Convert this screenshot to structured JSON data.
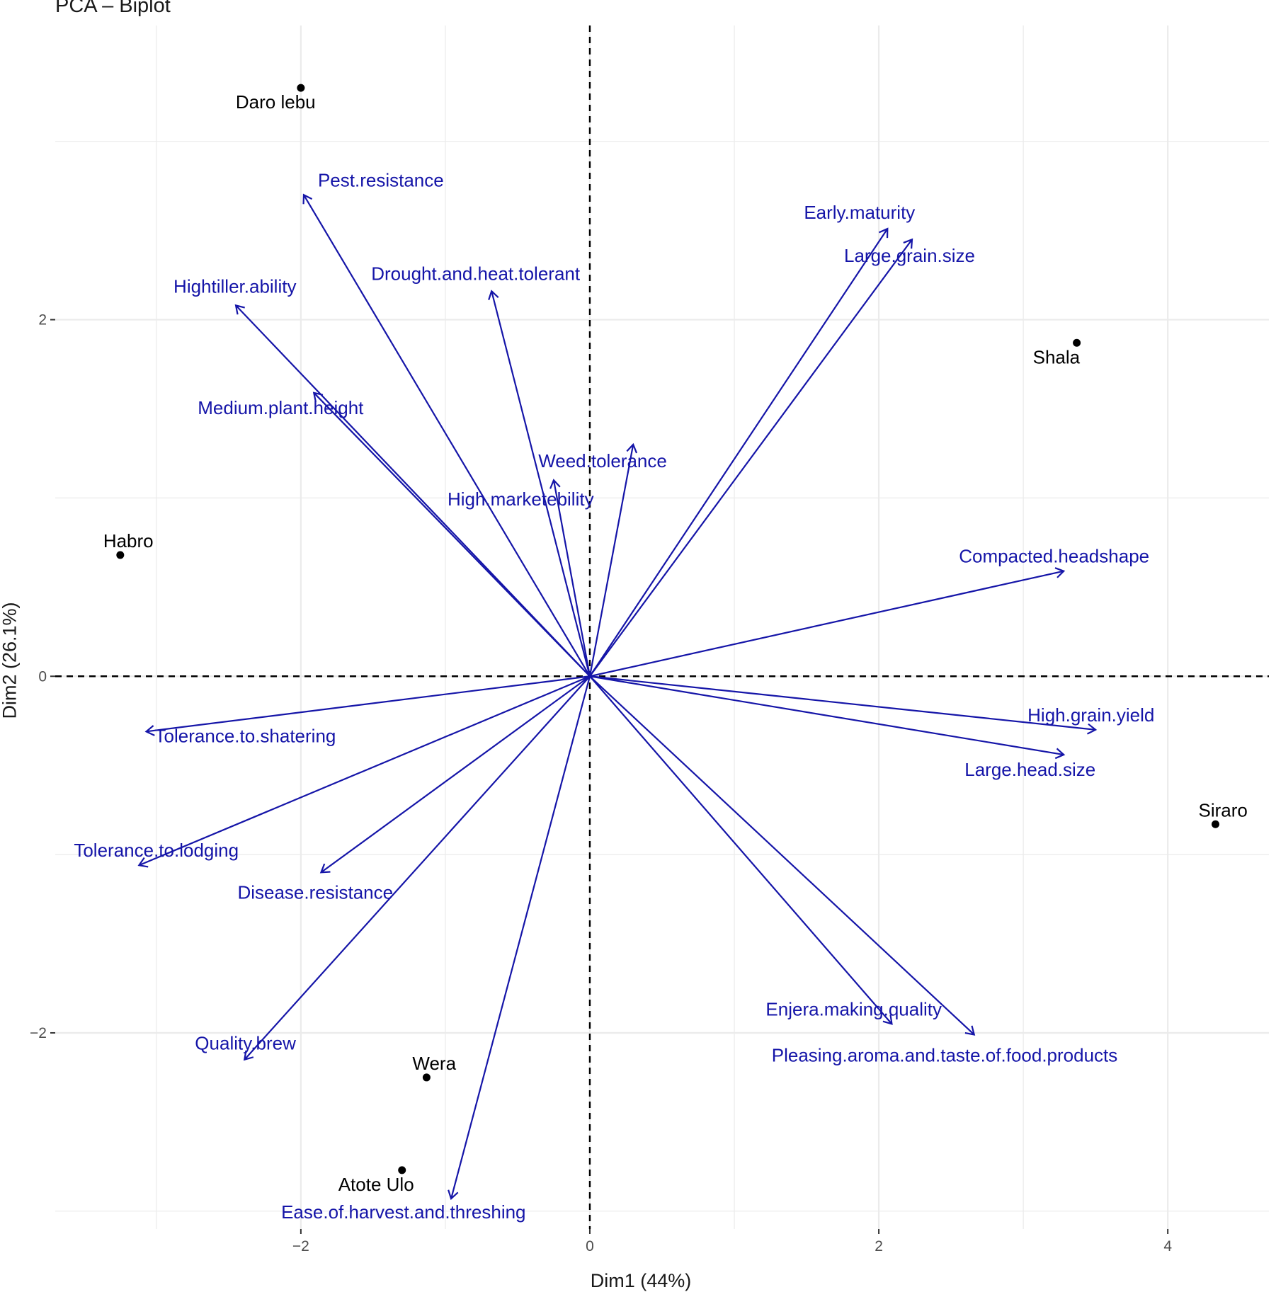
{
  "chart_data": {
    "type": "scatter",
    "title": "PCA – Biplot",
    "xlabel": "Dim1 (44%)",
    "ylabel": "Dim2 (26.1%)",
    "xlim": [
      -3.7,
      4.7
    ],
    "ylim": [
      -3.1,
      3.65
    ],
    "x_ticks": [
      -2,
      0,
      2,
      4
    ],
    "y_ticks": [
      -2,
      0,
      2
    ],
    "grid": true,
    "reference_lines": {
      "x": 0,
      "y": 0,
      "style": "dashed"
    },
    "colors": {
      "individuals": "#000000",
      "variables": "#1515a8",
      "grid": "#ebebeb"
    },
    "individuals": [
      {
        "name": "Daro lebu",
        "x": -2.0,
        "y": 3.3
      },
      {
        "name": "Shala",
        "x": 3.37,
        "y": 1.87
      },
      {
        "name": "Habro",
        "x": -3.25,
        "y": 0.68
      },
      {
        "name": "Siraro",
        "x": 4.33,
        "y": -0.83
      },
      {
        "name": "Wera",
        "x": -1.13,
        "y": -2.25
      },
      {
        "name": "Atote Ulo",
        "x": -1.3,
        "y": -2.77
      }
    ],
    "variables": [
      {
        "name": "Pest.resistance",
        "x": -1.98,
        "y": 2.7
      },
      {
        "name": "Hightiller.ability",
        "x": -2.45,
        "y": 2.08
      },
      {
        "name": "Drought.and.heat.tolerant",
        "x": -0.68,
        "y": 2.16
      },
      {
        "name": "Medium.plant.height",
        "x": -1.91,
        "y": 1.59
      },
      {
        "name": "Weed.tolerance",
        "x": 0.3,
        "y": 1.3
      },
      {
        "name": "High.marketebility",
        "x": -0.25,
        "y": 1.1
      },
      {
        "name": "Early.maturity",
        "x": 2.06,
        "y": 2.51
      },
      {
        "name": "Large.grain.size",
        "x": 2.23,
        "y": 2.45
      },
      {
        "name": "Compacted.headshape",
        "x": 3.28,
        "y": 0.59
      },
      {
        "name": "High.grain.yield",
        "x": 3.5,
        "y": -0.3
      },
      {
        "name": "Large.head.size",
        "x": 3.28,
        "y": -0.44
      },
      {
        "name": "Tolerance.to.shatering",
        "x": -3.07,
        "y": -0.31
      },
      {
        "name": "Tolerance.to.lodging",
        "x": -3.12,
        "y": -1.06
      },
      {
        "name": "Disease.resistance",
        "x": -1.86,
        "y": -1.1
      },
      {
        "name": "Quality.brew",
        "x": -2.39,
        "y": -2.15
      },
      {
        "name": "Ease.of.harvest.and.threshing",
        "x": -0.96,
        "y": -2.93
      },
      {
        "name": "Enjera.making.quality",
        "x": 2.09,
        "y": -1.95
      },
      {
        "name": "Pleasing.aroma.and.taste.of.food.products",
        "x": 2.66,
        "y": -2.01
      }
    ]
  }
}
